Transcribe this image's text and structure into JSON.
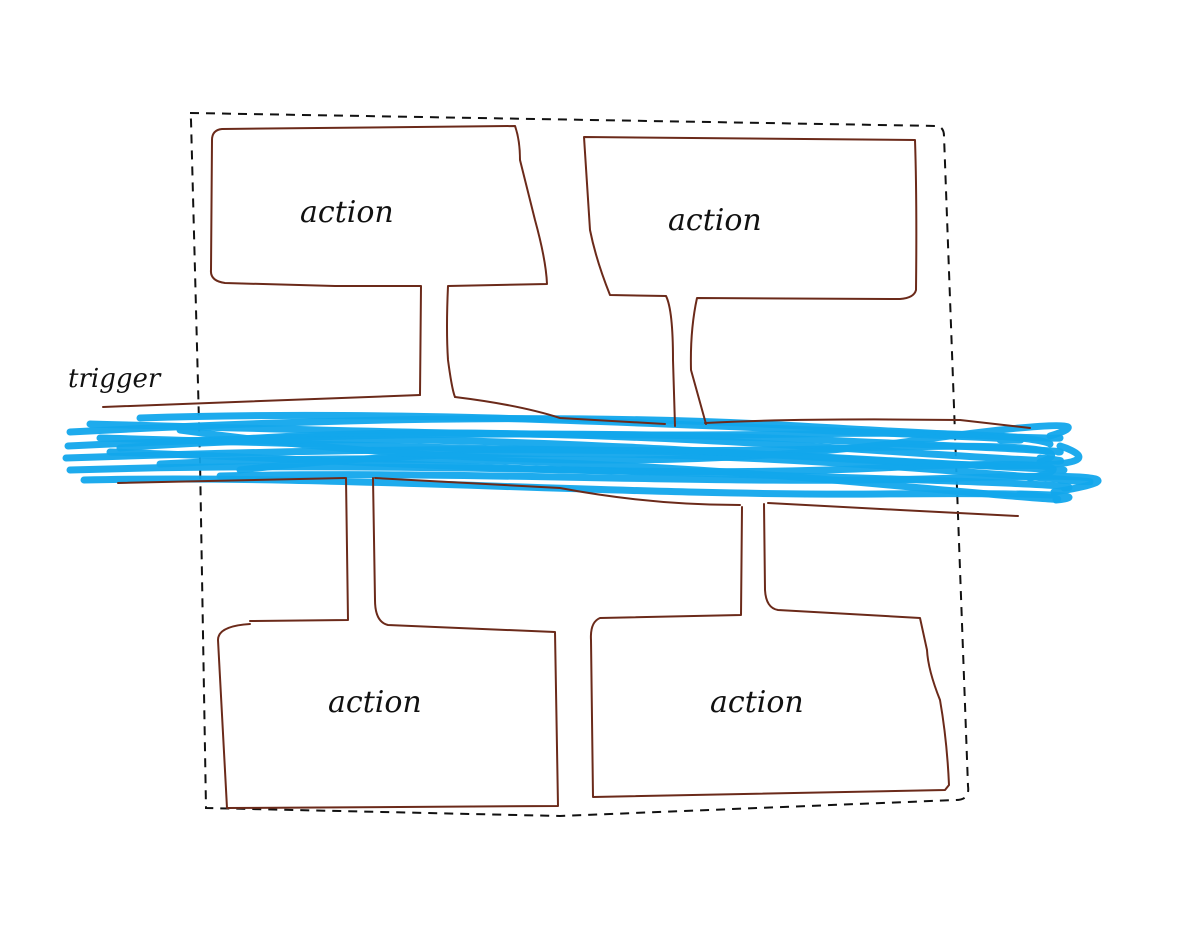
{
  "colors": {
    "outline": "#6b2a1a",
    "boundary": "#111111",
    "trigger_stream": "#12a6ec",
    "text": "#111111"
  },
  "trigger": {
    "label": "trigger"
  },
  "actions": [
    {
      "label": "action"
    },
    {
      "label": "action"
    },
    {
      "label": "action"
    },
    {
      "label": "action"
    }
  ]
}
